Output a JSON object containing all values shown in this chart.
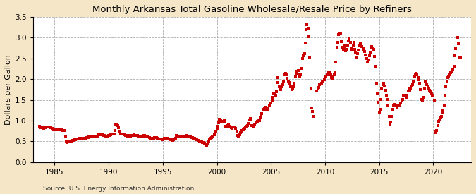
{
  "title": "Monthly Arkansas Total Gasoline Wholesale/Resale Price by Refiners",
  "ylabel": "Dollars per Gallon",
  "source": "Source: U.S. Energy Information Administration",
  "background_color": "#f5e6c8",
  "plot_bg_color": "#ffffff",
  "line_color": "#cc0000",
  "marker": "s",
  "markersize": 3.0,
  "linewidth": 0,
  "xlim": [
    1983.0,
    2023.5
  ],
  "ylim": [
    0.0,
    3.5
  ],
  "yticks": [
    0.0,
    0.5,
    1.0,
    1.5,
    2.0,
    2.5,
    3.0,
    3.5
  ],
  "xticks": [
    1985,
    1990,
    1995,
    2000,
    2005,
    2010,
    2015,
    2020
  ],
  "data": [
    [
      1983.583,
      0.862
    ],
    [
      1983.667,
      0.843
    ],
    [
      1983.75,
      0.821
    ],
    [
      1983.833,
      0.834
    ],
    [
      1983.917,
      0.821
    ],
    [
      1984.0,
      0.815
    ],
    [
      1984.083,
      0.823
    ],
    [
      1984.167,
      0.834
    ],
    [
      1984.25,
      0.845
    ],
    [
      1984.333,
      0.853
    ],
    [
      1984.417,
      0.851
    ],
    [
      1984.5,
      0.843
    ],
    [
      1984.583,
      0.832
    ],
    [
      1984.667,
      0.821
    ],
    [
      1984.75,
      0.812
    ],
    [
      1984.833,
      0.808
    ],
    [
      1984.917,
      0.801
    ],
    [
      1985.0,
      0.795
    ],
    [
      1985.083,
      0.789
    ],
    [
      1985.167,
      0.785
    ],
    [
      1985.25,
      0.791
    ],
    [
      1985.333,
      0.787
    ],
    [
      1985.417,
      0.779
    ],
    [
      1985.5,
      0.776
    ],
    [
      1985.583,
      0.778
    ],
    [
      1985.667,
      0.771
    ],
    [
      1985.75,
      0.762
    ],
    [
      1985.833,
      0.758
    ],
    [
      1985.917,
      0.753
    ],
    [
      1986.0,
      0.601
    ],
    [
      1986.083,
      0.502
    ],
    [
      1986.167,
      0.468
    ],
    [
      1986.25,
      0.493
    ],
    [
      1986.333,
      0.512
    ],
    [
      1986.417,
      0.501
    ],
    [
      1986.5,
      0.498
    ],
    [
      1986.583,
      0.512
    ],
    [
      1986.667,
      0.521
    ],
    [
      1986.75,
      0.531
    ],
    [
      1986.833,
      0.543
    ],
    [
      1986.917,
      0.548
    ],
    [
      1987.0,
      0.551
    ],
    [
      1987.083,
      0.558
    ],
    [
      1987.167,
      0.562
    ],
    [
      1987.25,
      0.571
    ],
    [
      1987.333,
      0.578
    ],
    [
      1987.417,
      0.582
    ],
    [
      1987.5,
      0.578
    ],
    [
      1987.583,
      0.571
    ],
    [
      1987.667,
      0.568
    ],
    [
      1987.75,
      0.574
    ],
    [
      1987.833,
      0.581
    ],
    [
      1987.917,
      0.591
    ],
    [
      1988.0,
      0.589
    ],
    [
      1988.083,
      0.592
    ],
    [
      1988.167,
      0.601
    ],
    [
      1988.25,
      0.612
    ],
    [
      1988.333,
      0.608
    ],
    [
      1988.417,
      0.614
    ],
    [
      1988.5,
      0.618
    ],
    [
      1988.583,
      0.622
    ],
    [
      1988.667,
      0.619
    ],
    [
      1988.75,
      0.614
    ],
    [
      1988.833,
      0.608
    ],
    [
      1988.917,
      0.601
    ],
    [
      1989.0,
      0.638
    ],
    [
      1989.083,
      0.651
    ],
    [
      1989.167,
      0.658
    ],
    [
      1989.25,
      0.668
    ],
    [
      1989.333,
      0.672
    ],
    [
      1989.417,
      0.662
    ],
    [
      1989.5,
      0.648
    ],
    [
      1989.583,
      0.638
    ],
    [
      1989.667,
      0.631
    ],
    [
      1989.75,
      0.624
    ],
    [
      1989.833,
      0.618
    ],
    [
      1989.917,
      0.618
    ],
    [
      1990.0,
      0.641
    ],
    [
      1990.083,
      0.648
    ],
    [
      1990.167,
      0.658
    ],
    [
      1990.25,
      0.668
    ],
    [
      1990.333,
      0.671
    ],
    [
      1990.417,
      0.672
    ],
    [
      1990.5,
      0.681
    ],
    [
      1990.583,
      0.762
    ],
    [
      1990.667,
      0.891
    ],
    [
      1990.75,
      0.921
    ],
    [
      1990.833,
      0.872
    ],
    [
      1990.917,
      0.822
    ],
    [
      1991.0,
      0.751
    ],
    [
      1991.083,
      0.678
    ],
    [
      1991.167,
      0.668
    ],
    [
      1991.25,
      0.672
    ],
    [
      1991.333,
      0.668
    ],
    [
      1991.417,
      0.664
    ],
    [
      1991.5,
      0.651
    ],
    [
      1991.583,
      0.648
    ],
    [
      1991.667,
      0.641
    ],
    [
      1991.75,
      0.631
    ],
    [
      1991.833,
      0.638
    ],
    [
      1991.917,
      0.631
    ],
    [
      1992.0,
      0.628
    ],
    [
      1992.083,
      0.634
    ],
    [
      1992.167,
      0.641
    ],
    [
      1992.25,
      0.648
    ],
    [
      1992.333,
      0.651
    ],
    [
      1992.417,
      0.648
    ],
    [
      1992.5,
      0.641
    ],
    [
      1992.583,
      0.638
    ],
    [
      1992.667,
      0.634
    ],
    [
      1992.75,
      0.628
    ],
    [
      1992.833,
      0.618
    ],
    [
      1992.917,
      0.612
    ],
    [
      1993.0,
      0.608
    ],
    [
      1993.083,
      0.618
    ],
    [
      1993.167,
      0.628
    ],
    [
      1993.25,
      0.638
    ],
    [
      1993.333,
      0.635
    ],
    [
      1993.417,
      0.631
    ],
    [
      1993.5,
      0.621
    ],
    [
      1993.583,
      0.611
    ],
    [
      1993.667,
      0.601
    ],
    [
      1993.75,
      0.591
    ],
    [
      1993.833,
      0.582
    ],
    [
      1993.917,
      0.571
    ],
    [
      1994.0,
      0.561
    ],
    [
      1994.083,
      0.571
    ],
    [
      1994.167,
      0.578
    ],
    [
      1994.25,
      0.588
    ],
    [
      1994.333,
      0.592
    ],
    [
      1994.417,
      0.588
    ],
    [
      1994.5,
      0.581
    ],
    [
      1994.583,
      0.572
    ],
    [
      1994.667,
      0.564
    ],
    [
      1994.75,
      0.558
    ],
    [
      1994.833,
      0.551
    ],
    [
      1994.917,
      0.548
    ],
    [
      1995.0,
      0.558
    ],
    [
      1995.083,
      0.565
    ],
    [
      1995.167,
      0.572
    ],
    [
      1995.25,
      0.581
    ],
    [
      1995.333,
      0.575
    ],
    [
      1995.417,
      0.569
    ],
    [
      1995.5,
      0.562
    ],
    [
      1995.583,
      0.558
    ],
    [
      1995.667,
      0.548
    ],
    [
      1995.75,
      0.538
    ],
    [
      1995.833,
      0.528
    ],
    [
      1995.917,
      0.522
    ],
    [
      1996.0,
      0.548
    ],
    [
      1996.083,
      0.558
    ],
    [
      1996.167,
      0.571
    ],
    [
      1996.25,
      0.648
    ],
    [
      1996.333,
      0.638
    ],
    [
      1996.417,
      0.628
    ],
    [
      1996.5,
      0.618
    ],
    [
      1996.583,
      0.611
    ],
    [
      1996.667,
      0.608
    ],
    [
      1996.75,
      0.601
    ],
    [
      1996.833,
      0.611
    ],
    [
      1996.917,
      0.618
    ],
    [
      1997.0,
      0.621
    ],
    [
      1997.083,
      0.628
    ],
    [
      1997.167,
      0.635
    ],
    [
      1997.25,
      0.638
    ],
    [
      1997.333,
      0.631
    ],
    [
      1997.417,
      0.625
    ],
    [
      1997.5,
      0.618
    ],
    [
      1997.583,
      0.608
    ],
    [
      1997.667,
      0.598
    ],
    [
      1997.75,
      0.591
    ],
    [
      1997.833,
      0.581
    ],
    [
      1997.917,
      0.571
    ],
    [
      1998.0,
      0.558
    ],
    [
      1998.083,
      0.548
    ],
    [
      1998.167,
      0.538
    ],
    [
      1998.25,
      0.528
    ],
    [
      1998.333,
      0.518
    ],
    [
      1998.417,
      0.508
    ],
    [
      1998.5,
      0.498
    ],
    [
      1998.583,
      0.489
    ],
    [
      1998.667,
      0.478
    ],
    [
      1998.75,
      0.468
    ],
    [
      1998.833,
      0.451
    ],
    [
      1998.917,
      0.432
    ],
    [
      1999.0,
      0.398
    ],
    [
      1999.083,
      0.411
    ],
    [
      1999.167,
      0.438
    ],
    [
      1999.25,
      0.511
    ],
    [
      1999.333,
      0.558
    ],
    [
      1999.417,
      0.568
    ],
    [
      1999.5,
      0.588
    ],
    [
      1999.583,
      0.608
    ],
    [
      1999.667,
      0.618
    ],
    [
      1999.75,
      0.651
    ],
    [
      1999.833,
      0.701
    ],
    [
      1999.917,
      0.741
    ],
    [
      2000.0,
      0.808
    ],
    [
      2000.083,
      0.858
    ],
    [
      2000.167,
      0.951
    ],
    [
      2000.25,
      1.028
    ],
    [
      2000.333,
      1.008
    ],
    [
      2000.417,
      0.988
    ],
    [
      2000.5,
      0.958
    ],
    [
      2000.583,
      0.978
    ],
    [
      2000.667,
      1.008
    ],
    [
      2000.75,
      0.958
    ],
    [
      2000.833,
      0.868
    ],
    [
      2000.917,
      0.858
    ],
    [
      2001.0,
      0.878
    ],
    [
      2001.083,
      0.891
    ],
    [
      2001.167,
      0.858
    ],
    [
      2001.25,
      0.838
    ],
    [
      2001.333,
      0.828
    ],
    [
      2001.417,
      0.818
    ],
    [
      2001.5,
      0.838
    ],
    [
      2001.583,
      0.848
    ],
    [
      2001.667,
      0.838
    ],
    [
      2001.75,
      0.818
    ],
    [
      2001.833,
      0.751
    ],
    [
      2001.917,
      0.641
    ],
    [
      2002.0,
      0.628
    ],
    [
      2002.083,
      0.658
    ],
    [
      2002.167,
      0.708
    ],
    [
      2002.25,
      0.748
    ],
    [
      2002.333,
      0.768
    ],
    [
      2002.417,
      0.778
    ],
    [
      2002.5,
      0.801
    ],
    [
      2002.583,
      0.818
    ],
    [
      2002.667,
      0.838
    ],
    [
      2002.75,
      0.858
    ],
    [
      2002.833,
      0.888
    ],
    [
      2002.917,
      0.938
    ],
    [
      2003.0,
      1.011
    ],
    [
      2003.083,
      1.058
    ],
    [
      2003.167,
      1.011
    ],
    [
      2003.25,
      0.878
    ],
    [
      2003.333,
      0.858
    ],
    [
      2003.417,
      0.878
    ],
    [
      2003.5,
      0.908
    ],
    [
      2003.583,
      0.948
    ],
    [
      2003.667,
      0.968
    ],
    [
      2003.75,
      0.978
    ],
    [
      2003.833,
      0.991
    ],
    [
      2003.917,
      1.001
    ],
    [
      2004.0,
      1.068
    ],
    [
      2004.083,
      1.108
    ],
    [
      2004.167,
      1.168
    ],
    [
      2004.25,
      1.248
    ],
    [
      2004.333,
      1.278
    ],
    [
      2004.417,
      1.298
    ],
    [
      2004.5,
      1.318
    ],
    [
      2004.583,
      1.268
    ],
    [
      2004.667,
      1.258
    ],
    [
      2004.75,
      1.298
    ],
    [
      2004.833,
      1.348
    ],
    [
      2004.917,
      1.368
    ],
    [
      2005.0,
      1.418
    ],
    [
      2005.083,
      1.468
    ],
    [
      2005.167,
      1.558
    ],
    [
      2005.25,
      1.668
    ],
    [
      2005.333,
      1.658
    ],
    [
      2005.417,
      1.618
    ],
    [
      2005.5,
      1.688
    ],
    [
      2005.583,
      2.028
    ],
    [
      2005.667,
      1.918
    ],
    [
      2005.75,
      1.818
    ],
    [
      2005.833,
      1.768
    ],
    [
      2005.917,
      1.748
    ],
    [
      2006.0,
      1.808
    ],
    [
      2006.083,
      1.868
    ],
    [
      2006.167,
      1.928
    ],
    [
      2006.25,
      2.108
    ],
    [
      2006.333,
      2.138
    ],
    [
      2006.417,
      2.098
    ],
    [
      2006.5,
      2.018
    ],
    [
      2006.583,
      1.958
    ],
    [
      2006.667,
      1.918
    ],
    [
      2006.75,
      1.908
    ],
    [
      2006.833,
      1.818
    ],
    [
      2006.917,
      1.748
    ],
    [
      2007.0,
      1.768
    ],
    [
      2007.083,
      1.818
    ],
    [
      2007.167,
      1.908
    ],
    [
      2007.25,
      2.058
    ],
    [
      2007.333,
      2.128
    ],
    [
      2007.417,
      2.188
    ],
    [
      2007.5,
      2.208
    ],
    [
      2007.583,
      2.098
    ],
    [
      2007.667,
      2.068
    ],
    [
      2007.75,
      2.108
    ],
    [
      2007.833,
      2.258
    ],
    [
      2007.917,
      2.488
    ],
    [
      2008.0,
      2.558
    ],
    [
      2008.083,
      2.618
    ],
    [
      2008.167,
      2.868
    ],
    [
      2008.25,
      3.188
    ],
    [
      2008.333,
      3.318
    ],
    [
      2008.417,
      3.218
    ],
    [
      2008.5,
      3.018
    ],
    [
      2008.583,
      2.518
    ],
    [
      2008.667,
      1.788
    ],
    [
      2008.75,
      1.308
    ],
    [
      2008.833,
      1.228
    ],
    [
      2008.917,
      1.098
    ],
    [
      2009.25,
      1.718
    ],
    [
      2009.333,
      1.778
    ],
    [
      2009.417,
      1.798
    ],
    [
      2009.5,
      1.858
    ],
    [
      2009.583,
      1.888
    ],
    [
      2009.667,
      1.908
    ],
    [
      2009.75,
      1.928
    ],
    [
      2009.833,
      1.958
    ],
    [
      2009.917,
      1.978
    ],
    [
      2010.083,
      2.058
    ],
    [
      2010.167,
      2.108
    ],
    [
      2010.25,
      2.168
    ],
    [
      2010.333,
      2.158
    ],
    [
      2010.417,
      2.148
    ],
    [
      2010.5,
      2.108
    ],
    [
      2010.583,
      2.028
    ],
    [
      2010.667,
      2.018
    ],
    [
      2010.75,
      2.058
    ],
    [
      2010.833,
      2.108
    ],
    [
      2010.917,
      2.168
    ],
    [
      2011.0,
      2.418
    ],
    [
      2011.083,
      2.768
    ],
    [
      2011.167,
      2.888
    ],
    [
      2011.25,
      3.068
    ],
    [
      2011.333,
      3.098
    ],
    [
      2011.417,
      3.108
    ],
    [
      2011.5,
      2.908
    ],
    [
      2011.583,
      2.768
    ],
    [
      2011.667,
      2.718
    ],
    [
      2011.75,
      2.768
    ],
    [
      2011.833,
      2.818
    ],
    [
      2011.917,
      2.688
    ],
    [
      2012.0,
      2.718
    ],
    [
      2012.083,
      2.818
    ],
    [
      2012.167,
      2.918
    ],
    [
      2012.25,
      2.988
    ],
    [
      2012.333,
      2.888
    ],
    [
      2012.417,
      2.748
    ],
    [
      2012.5,
      2.708
    ],
    [
      2012.583,
      2.798
    ],
    [
      2012.667,
      2.878
    ],
    [
      2012.75,
      2.708
    ],
    [
      2012.833,
      2.628
    ],
    [
      2012.917,
      2.508
    ],
    [
      2013.0,
      2.618
    ],
    [
      2013.083,
      2.698
    ],
    [
      2013.167,
      2.808
    ],
    [
      2013.25,
      2.868
    ],
    [
      2013.333,
      2.818
    ],
    [
      2013.417,
      2.778
    ],
    [
      2013.5,
      2.748
    ],
    [
      2013.583,
      2.718
    ],
    [
      2013.667,
      2.668
    ],
    [
      2013.75,
      2.578
    ],
    [
      2013.833,
      2.488
    ],
    [
      2013.917,
      2.408
    ],
    [
      2014.0,
      2.468
    ],
    [
      2014.083,
      2.558
    ],
    [
      2014.167,
      2.638
    ],
    [
      2014.25,
      2.768
    ],
    [
      2014.333,
      2.788
    ],
    [
      2014.417,
      2.748
    ],
    [
      2014.5,
      2.708
    ],
    [
      2014.583,
      2.548
    ],
    [
      2014.667,
      2.308
    ],
    [
      2014.75,
      1.908
    ],
    [
      2014.833,
      1.648
    ],
    [
      2014.917,
      1.438
    ],
    [
      2015.0,
      1.208
    ],
    [
      2015.083,
      1.268
    ],
    [
      2015.167,
      1.508
    ],
    [
      2015.25,
      1.768
    ],
    [
      2015.333,
      1.858
    ],
    [
      2015.417,
      1.908
    ],
    [
      2015.5,
      1.838
    ],
    [
      2015.583,
      1.738
    ],
    [
      2015.667,
      1.618
    ],
    [
      2015.75,
      1.508
    ],
    [
      2015.833,
      1.368
    ],
    [
      2015.917,
      1.108
    ],
    [
      2016.0,
      0.908
    ],
    [
      2016.083,
      0.958
    ],
    [
      2016.167,
      1.108
    ],
    [
      2016.25,
      1.268
    ],
    [
      2016.333,
      1.368
    ],
    [
      2016.417,
      1.398
    ],
    [
      2016.5,
      1.378
    ],
    [
      2016.583,
      1.358
    ],
    [
      2016.667,
      1.328
    ],
    [
      2016.75,
      1.368
    ],
    [
      2016.833,
      1.358
    ],
    [
      2016.917,
      1.378
    ],
    [
      2017.0,
      1.418
    ],
    [
      2017.083,
      1.468
    ],
    [
      2017.167,
      1.508
    ],
    [
      2017.25,
      1.618
    ],
    [
      2017.333,
      1.618
    ],
    [
      2017.417,
      1.588
    ],
    [
      2017.5,
      1.538
    ],
    [
      2017.583,
      1.608
    ],
    [
      2017.667,
      1.718
    ],
    [
      2017.75,
      1.768
    ],
    [
      2017.833,
      1.738
    ],
    [
      2017.917,
      1.768
    ],
    [
      2018.0,
      1.828
    ],
    [
      2018.083,
      1.868
    ],
    [
      2018.167,
      1.938
    ],
    [
      2018.25,
      2.058
    ],
    [
      2018.333,
      2.098
    ],
    [
      2018.417,
      2.138
    ],
    [
      2018.5,
      2.108
    ],
    [
      2018.583,
      2.028
    ],
    [
      2018.667,
      1.978
    ],
    [
      2018.75,
      1.908
    ],
    [
      2018.833,
      1.748
    ],
    [
      2018.917,
      1.508
    ],
    [
      2019.0,
      1.468
    ],
    [
      2019.083,
      1.568
    ],
    [
      2019.167,
      1.758
    ],
    [
      2019.25,
      1.928
    ],
    [
      2019.333,
      1.898
    ],
    [
      2019.417,
      1.858
    ],
    [
      2019.5,
      1.808
    ],
    [
      2019.583,
      1.768
    ],
    [
      2019.667,
      1.728
    ],
    [
      2019.75,
      1.688
    ],
    [
      2019.833,
      1.648
    ],
    [
      2019.917,
      1.618
    ],
    [
      2020.0,
      1.608
    ],
    [
      2020.083,
      1.498
    ],
    [
      2020.167,
      0.748
    ],
    [
      2020.25,
      0.718
    ],
    [
      2020.333,
      0.758
    ],
    [
      2020.417,
      0.878
    ],
    [
      2020.5,
      0.978
    ],
    [
      2020.583,
      1.008
    ],
    [
      2020.667,
      1.068
    ],
    [
      2020.75,
      1.108
    ],
    [
      2020.833,
      1.208
    ],
    [
      2020.917,
      1.238
    ],
    [
      2021.0,
      1.368
    ],
    [
      2021.083,
      1.618
    ],
    [
      2021.167,
      1.808
    ],
    [
      2021.25,
      1.958
    ],
    [
      2021.333,
      2.028
    ],
    [
      2021.417,
      2.058
    ],
    [
      2021.5,
      2.108
    ],
    [
      2021.583,
      2.148
    ],
    [
      2021.667,
      2.168
    ],
    [
      2021.75,
      2.188
    ],
    [
      2021.833,
      2.218
    ],
    [
      2021.917,
      2.308
    ],
    [
      2022.0,
      2.568
    ],
    [
      2022.083,
      2.728
    ],
    [
      2022.167,
      3.008
    ],
    [
      2022.25,
      3.008
    ],
    [
      2022.333,
      2.858
    ],
    [
      2022.417,
      2.508
    ],
    [
      2022.5,
      2.508
    ]
  ]
}
